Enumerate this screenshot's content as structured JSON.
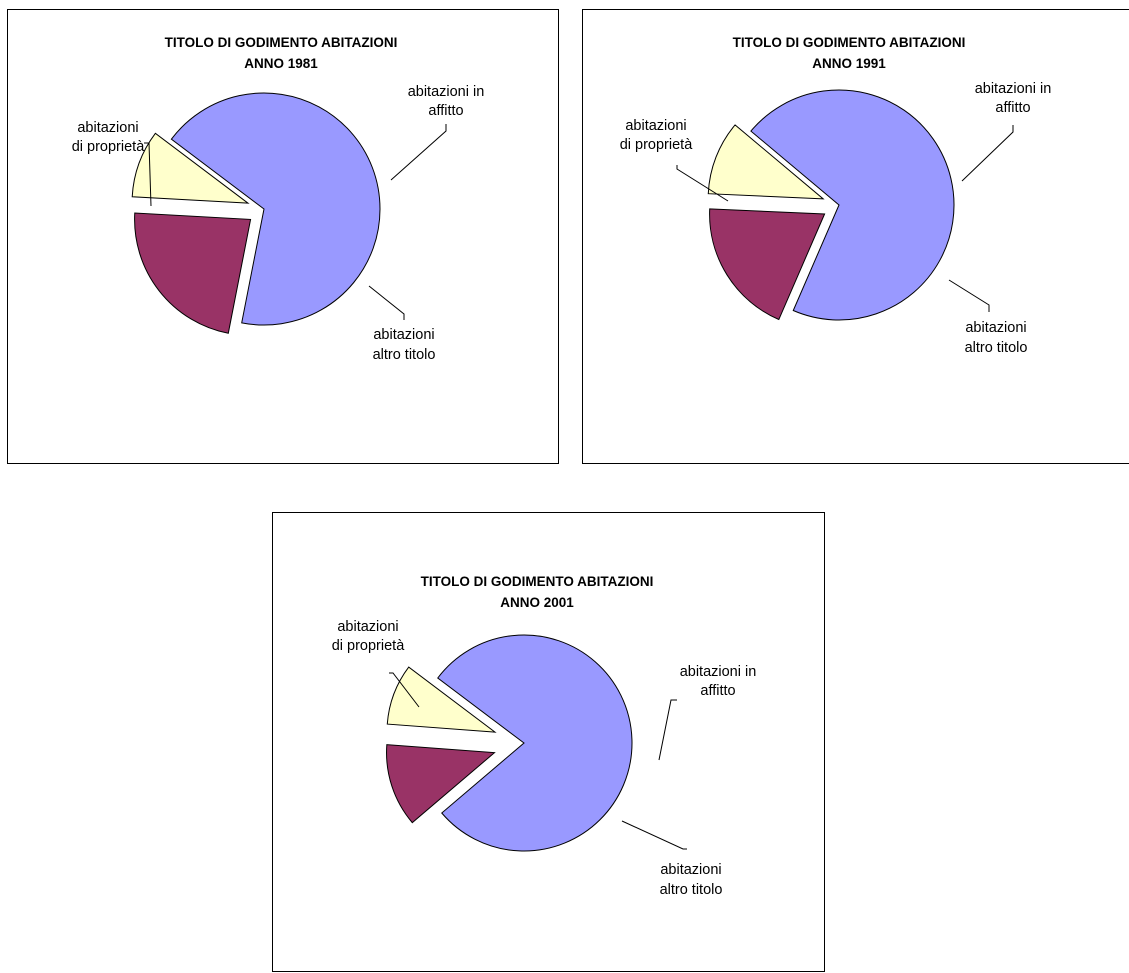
{
  "chart_data": [
    {
      "type": "pie",
      "title": "TITOLO DI GODIMENTO ABITAZIONI",
      "subtitle": "ANNO 1981",
      "slices": [
        {
          "label": "abitazioni di proprietà",
          "value": 67.8,
          "color": "#9999ff"
        },
        {
          "label": "abitazioni in affitto",
          "value": 22.8,
          "color": "#993366"
        },
        {
          "label": "abitazioni altro titolo",
          "value": 9.4,
          "color": "#ffffcc"
        }
      ]
    },
    {
      "type": "pie",
      "title": "TITOLO DI GODIMENTO ABITAZIONI",
      "subtitle": "ANNO 1991",
      "slices": [
        {
          "label": "abitazioni di proprietà",
          "value": 70.4,
          "color": "#9999ff"
        },
        {
          "label": "abitazioni in affitto",
          "value": 19.2,
          "color": "#993366"
        },
        {
          "label": "abitazioni altro titolo",
          "value": 10.4,
          "color": "#ffffcc"
        }
      ]
    },
    {
      "type": "pie",
      "title": "TITOLO DI GODIMENTO ABITAZIONI",
      "subtitle": "ANNO 2001",
      "slices": [
        {
          "label": "abitazioni di proprietà",
          "value": 78.5,
          "color": "#9999ff"
        },
        {
          "label": "abitazioni in affitto",
          "value": 12.4,
          "color": "#993366"
        },
        {
          "label": "abitazioni altro titolo",
          "value": 9.1,
          "color": "#ffffcc"
        }
      ]
    }
  ],
  "labels": {
    "own_line1": "abitazioni",
    "own_line2": "di proprietà",
    "rent_line1": "abitazioni in",
    "rent_line2": "affitto",
    "other_line1": "abitazioni",
    "other_line2": "altro titolo"
  }
}
